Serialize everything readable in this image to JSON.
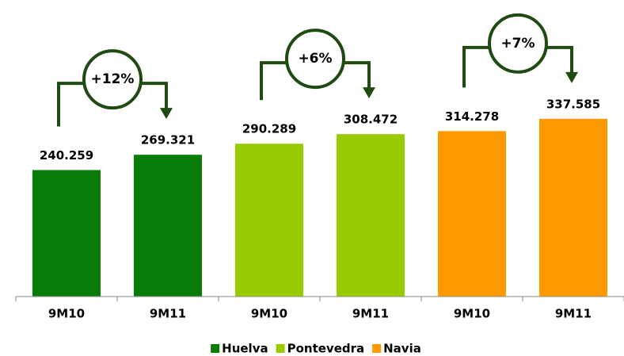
{
  "chart_data": {
    "type": "bar",
    "categories": [
      "9M10",
      "9M11"
    ],
    "series": [
      {
        "name": "Huelva",
        "color": "#087d08",
        "values": [
          240.259,
          269.321
        ],
        "annotation": "+12%"
      },
      {
        "name": "Pontevedra",
        "color": "#99cc00",
        "values": [
          290.289,
          308.472
        ],
        "annotation": "+6%"
      },
      {
        "name": "Navia",
        "color": "#ff9900",
        "values": [
          314.278,
          337.585
        ],
        "annotation": "+7%"
      }
    ],
    "ylim": [
      0,
      500
    ]
  }
}
